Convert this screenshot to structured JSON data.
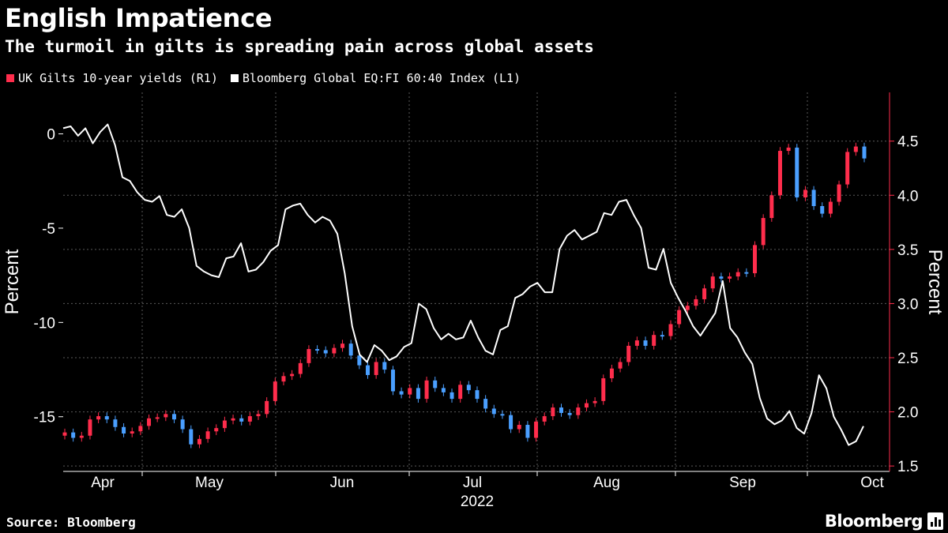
{
  "header": {
    "title": "English Impatience",
    "subtitle": "The turmoil in gilts is spreading pain across global assets"
  },
  "footer": {
    "source": "Source: Bloomberg",
    "brand": "Bloomberg"
  },
  "colors": {
    "background": "#000000",
    "gilts": "#ff2d4c",
    "gilts_down": "#4a9fff",
    "index": "#ffffff",
    "grid": "#5a5a5a"
  },
  "chart_data": {
    "type": "line",
    "year_label": "2022",
    "months": [
      "Apr",
      "May",
      "Jun",
      "Jul",
      "Aug",
      "Sep",
      "Oct"
    ],
    "left_axis": {
      "label": "Percent",
      "ticks": [
        0,
        -5,
        -10,
        -15
      ],
      "tick_labels": [
        "0",
        "-5",
        "-10",
        "-15"
      ],
      "range": [
        -17.9,
        2.2
      ]
    },
    "right_axis": {
      "label": "Percent",
      "ticks": [
        1.5,
        2.0,
        2.5,
        3.0,
        3.5,
        4.0,
        4.5
      ],
      "tick_labels": [
        "1.5",
        "2.0",
        "2.5",
        "3.0",
        "3.5",
        "4.0",
        "4.5"
      ],
      "range": [
        1.45,
        4.95
      ]
    },
    "series": [
      {
        "name": "UK Gilts 10-year yields (R1)",
        "axis": "right",
        "kind": "candlestick",
        "values": [
          1.81,
          1.76,
          1.78,
          1.93,
          1.96,
          1.93,
          1.86,
          1.8,
          1.82,
          1.87,
          1.94,
          1.95,
          1.98,
          1.93,
          1.84,
          1.7,
          1.75,
          1.82,
          1.85,
          1.92,
          1.94,
          1.91,
          1.96,
          1.98,
          2.1,
          2.28,
          2.33,
          2.35,
          2.45,
          2.58,
          2.57,
          2.54,
          2.59,
          2.63,
          2.52,
          2.43,
          2.34,
          2.46,
          2.39,
          2.19,
          2.16,
          2.22,
          2.12,
          2.29,
          2.22,
          2.18,
          2.12,
          2.25,
          2.2,
          2.12,
          2.03,
          1.98,
          1.97,
          1.84,
          1.88,
          1.76,
          1.91,
          1.96,
          2.04,
          1.99,
          1.97,
          2.04,
          2.08,
          2.1,
          2.31,
          2.4,
          2.46,
          2.61,
          2.66,
          2.61,
          2.71,
          2.7,
          2.81,
          2.94,
          2.98,
          3.04,
          3.14,
          3.25,
          3.23,
          3.25,
          3.29,
          3.28,
          3.54,
          3.79,
          4.0,
          4.41,
          4.44,
          3.98,
          4.05,
          3.9,
          3.83,
          3.94,
          4.1,
          4.4,
          4.45,
          4.34
        ]
      },
      {
        "name": "Bloomberg Global EQ:FI 60:40 Index (L1)",
        "axis": "left",
        "kind": "line",
        "values": [
          0.3,
          0.4,
          -0.1,
          0.3,
          -0.5,
          0.1,
          0.5,
          -0.6,
          -2.3,
          -2.5,
          -3.1,
          -3.5,
          -3.6,
          -3.3,
          -4.3,
          -4.4,
          -4.0,
          -5.0,
          -7.0,
          -7.3,
          -7.5,
          -7.6,
          -6.6,
          -6.5,
          -5.8,
          -7.3,
          -7.2,
          -6.8,
          -6.2,
          -5.9,
          -4.0,
          -3.8,
          -3.7,
          -4.3,
          -4.7,
          -4.4,
          -4.6,
          -5.3,
          -7.4,
          -10.2,
          -11.7,
          -12.1,
          -11.2,
          -11.5,
          -12.0,
          -11.8,
          -11.3,
          -11.1,
          -9.0,
          -9.3,
          -10.3,
          -10.9,
          -10.6,
          -10.9,
          -10.8,
          -9.9,
          -10.8,
          -11.5,
          -11.7,
          -10.4,
          -10.2,
          -8.7,
          -8.5,
          -8.1,
          -7.9,
          -8.4,
          -8.4,
          -6.1,
          -5.4,
          -5.1,
          -5.6,
          -5.4,
          -5.2,
          -4.2,
          -4.3,
          -3.6,
          -3.5,
          -4.3,
          -5.0,
          -7.1,
          -7.2,
          -6.1,
          -7.9,
          -8.7,
          -9.4,
          -10.2,
          -10.7,
          -10.1,
          -9.5,
          -7.8,
          -10.3,
          -10.8,
          -11.6,
          -12.2,
          -14.0,
          -15.1,
          -15.4,
          -15.2,
          -14.7,
          -15.6,
          -15.9,
          -14.8,
          -12.8,
          -13.5,
          -15.0,
          -15.7,
          -16.5,
          -16.3,
          -15.5
        ],
        "dates": [
          "Apr",
          "Oct"
        ]
      }
    ]
  }
}
